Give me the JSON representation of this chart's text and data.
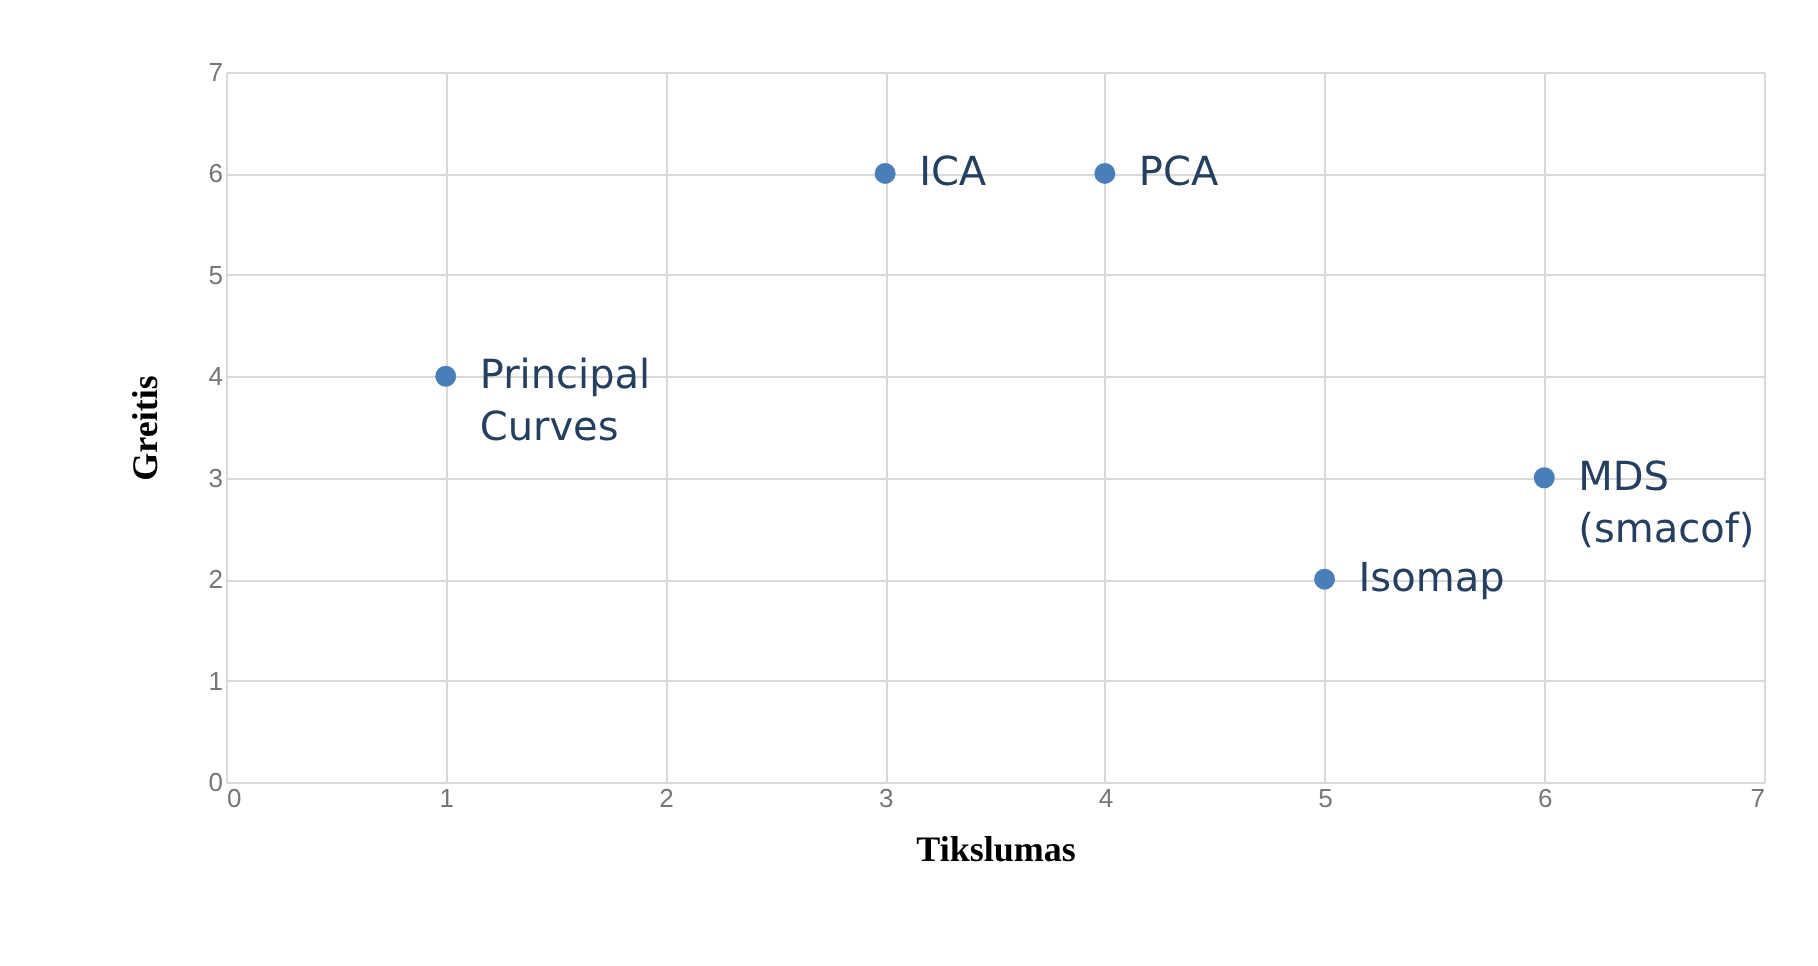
{
  "chart_data": {
    "type": "scatter",
    "xlabel": "Tikslumas",
    "ylabel": "Greitis",
    "x": [
      1,
      3,
      4,
      5,
      6
    ],
    "series": [
      {
        "color": "#4a7ebb",
        "values": [
          4,
          6,
          6,
          2,
          3
        ]
      }
    ],
    "annotations": [
      {
        "text": "Principal Curves",
        "x": 1,
        "y": 4
      },
      {
        "text": "ICA",
        "x": 3,
        "y": 6
      },
      {
        "text": "PCA",
        "x": 4,
        "y": 6
      },
      {
        "text": "Isomap",
        "x": 5,
        "y": 2
      },
      {
        "text": "MDS (smacof)",
        "x": 6,
        "y": 3
      }
    ],
    "xlim": [
      0,
      7
    ],
    "ylim": [
      0,
      7
    ],
    "xticks": [
      0,
      1,
      2,
      3,
      4,
      5,
      6,
      7
    ],
    "yticks": [
      0,
      1,
      2,
      3,
      4,
      5,
      6,
      7
    ],
    "grid": true,
    "marker": "circle",
    "legend": false
  }
}
